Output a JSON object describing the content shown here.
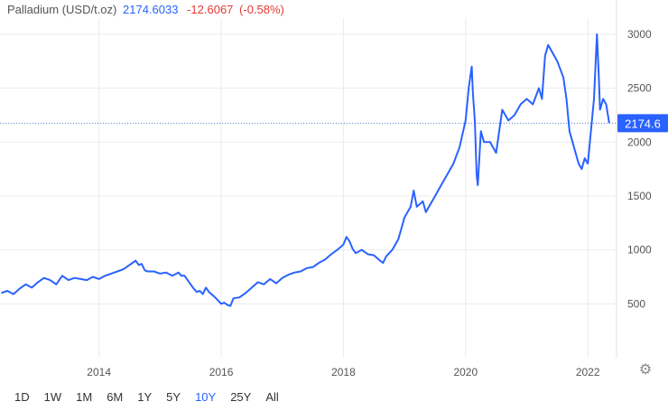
{
  "header": {
    "name": "Palladium (USD/t.oz)",
    "price": "2174.6033",
    "change": "-12.6067",
    "change_pct": "(-0.58%)"
  },
  "chart_data": {
    "type": "line",
    "ylim": [
      0,
      3150
    ],
    "yticks": [
      500,
      1000,
      1500,
      2000,
      2500,
      3000
    ],
    "xticks": [
      {
        "label": "2014",
        "x": 2014
      },
      {
        "label": "2016",
        "x": 2016
      },
      {
        "label": "2018",
        "x": 2018
      },
      {
        "label": "2020",
        "x": 2020
      },
      {
        "label": "2022",
        "x": 2022
      }
    ],
    "xlim": [
      2012.38,
      2022.47
    ],
    "last_value_label": "2174.6",
    "last_value": 2174.6,
    "grid": true,
    "series": [
      {
        "color": "#2962ff",
        "points": [
          [
            2012.4,
            600
          ],
          [
            2012.5,
            620
          ],
          [
            2012.6,
            590
          ],
          [
            2012.7,
            640
          ],
          [
            2012.8,
            680
          ],
          [
            2012.9,
            650
          ],
          [
            2013.0,
            700
          ],
          [
            2013.1,
            740
          ],
          [
            2013.2,
            720
          ],
          [
            2013.3,
            680
          ],
          [
            2013.4,
            760
          ],
          [
            2013.5,
            720
          ],
          [
            2013.6,
            740
          ],
          [
            2013.7,
            730
          ],
          [
            2013.8,
            720
          ],
          [
            2013.9,
            750
          ],
          [
            2014.0,
            730
          ],
          [
            2014.1,
            760
          ],
          [
            2014.2,
            780
          ],
          [
            2014.3,
            800
          ],
          [
            2014.4,
            820
          ],
          [
            2014.5,
            860
          ],
          [
            2014.55,
            880
          ],
          [
            2014.6,
            900
          ],
          [
            2014.65,
            860
          ],
          [
            2014.7,
            870
          ],
          [
            2014.75,
            810
          ],
          [
            2014.8,
            800
          ],
          [
            2014.9,
            800
          ],
          [
            2015.0,
            780
          ],
          [
            2015.1,
            790
          ],
          [
            2015.2,
            760
          ],
          [
            2015.3,
            790
          ],
          [
            2015.35,
            760
          ],
          [
            2015.4,
            760
          ],
          [
            2015.5,
            680
          ],
          [
            2015.55,
            640
          ],
          [
            2015.6,
            610
          ],
          [
            2015.65,
            620
          ],
          [
            2015.7,
            590
          ],
          [
            2015.75,
            650
          ],
          [
            2015.8,
            610
          ],
          [
            2015.9,
            560
          ],
          [
            2016.0,
            500
          ],
          [
            2016.05,
            510
          ],
          [
            2016.1,
            490
          ],
          [
            2016.15,
            480
          ],
          [
            2016.2,
            550
          ],
          [
            2016.3,
            560
          ],
          [
            2016.4,
            600
          ],
          [
            2016.5,
            650
          ],
          [
            2016.6,
            700
          ],
          [
            2016.7,
            680
          ],
          [
            2016.8,
            730
          ],
          [
            2016.9,
            690
          ],
          [
            2017.0,
            740
          ],
          [
            2017.1,
            770
          ],
          [
            2017.2,
            790
          ],
          [
            2017.3,
            800
          ],
          [
            2017.4,
            830
          ],
          [
            2017.5,
            840
          ],
          [
            2017.6,
            880
          ],
          [
            2017.7,
            910
          ],
          [
            2017.8,
            960
          ],
          [
            2017.9,
            1000
          ],
          [
            2018.0,
            1050
          ],
          [
            2018.05,
            1120
          ],
          [
            2018.1,
            1080
          ],
          [
            2018.15,
            1010
          ],
          [
            2018.2,
            970
          ],
          [
            2018.3,
            1000
          ],
          [
            2018.4,
            960
          ],
          [
            2018.5,
            950
          ],
          [
            2018.6,
            900
          ],
          [
            2018.65,
            880
          ],
          [
            2018.7,
            940
          ],
          [
            2018.8,
            1000
          ],
          [
            2018.9,
            1100
          ],
          [
            2019.0,
            1300
          ],
          [
            2019.1,
            1400
          ],
          [
            2019.15,
            1550
          ],
          [
            2019.2,
            1400
          ],
          [
            2019.3,
            1450
          ],
          [
            2019.35,
            1350
          ],
          [
            2019.4,
            1400
          ],
          [
            2019.5,
            1500
          ],
          [
            2019.6,
            1600
          ],
          [
            2019.7,
            1700
          ],
          [
            2019.8,
            1800
          ],
          [
            2019.9,
            1950
          ],
          [
            2020.0,
            2200
          ],
          [
            2020.05,
            2500
          ],
          [
            2020.1,
            2700
          ],
          [
            2020.12,
            2450
          ],
          [
            2020.15,
            2200
          ],
          [
            2020.18,
            1700
          ],
          [
            2020.2,
            1600
          ],
          [
            2020.25,
            2100
          ],
          [
            2020.3,
            2000
          ],
          [
            2020.4,
            2000
          ],
          [
            2020.5,
            1900
          ],
          [
            2020.6,
            2300
          ],
          [
            2020.7,
            2200
          ],
          [
            2020.8,
            2250
          ],
          [
            2020.9,
            2350
          ],
          [
            2021.0,
            2400
          ],
          [
            2021.1,
            2350
          ],
          [
            2021.2,
            2500
          ],
          [
            2021.25,
            2400
          ],
          [
            2021.3,
            2800
          ],
          [
            2021.35,
            2900
          ],
          [
            2021.4,
            2850
          ],
          [
            2021.5,
            2750
          ],
          [
            2021.6,
            2600
          ],
          [
            2021.65,
            2400
          ],
          [
            2021.7,
            2100
          ],
          [
            2021.75,
            2000
          ],
          [
            2021.8,
            1900
          ],
          [
            2021.85,
            1800
          ],
          [
            2021.9,
            1750
          ],
          [
            2021.95,
            1850
          ],
          [
            2022.0,
            1800
          ],
          [
            2022.05,
            2100
          ],
          [
            2022.1,
            2400
          ],
          [
            2022.15,
            3000
          ],
          [
            2022.18,
            2600
          ],
          [
            2022.2,
            2300
          ],
          [
            2022.25,
            2400
          ],
          [
            2022.3,
            2350
          ],
          [
            2022.35,
            2175
          ]
        ]
      }
    ]
  },
  "range_buttons": [
    "1D",
    "1W",
    "1M",
    "6M",
    "1Y",
    "5Y",
    "10Y",
    "25Y",
    "All"
  ],
  "active_range": "10Y"
}
